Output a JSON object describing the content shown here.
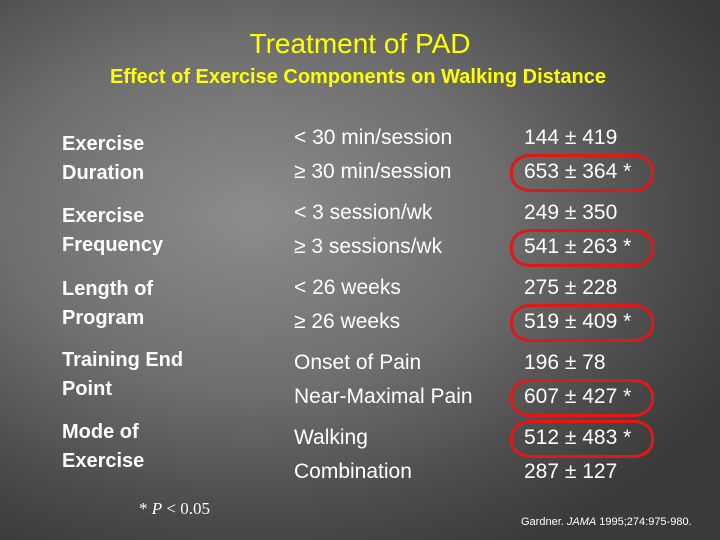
{
  "slide": {
    "title": "Treatment of PAD",
    "subtitle": "Effect of Exercise Components on Walking Distance"
  },
  "rows": [
    {
      "label_line1": "Exercise",
      "label_line2": "Duration",
      "cond1": "< 30 min/session",
      "cond2": "≥ 30 min/session",
      "val1": "144 ± 419",
      "val2": "653 ± 364  *",
      "highlighted_line": 2
    },
    {
      "label_line1": "Exercise",
      "label_line2": "Frequency",
      "cond1": "< 3 session/wk",
      "cond2": "≥ 3 sessions/wk",
      "val1": "249 ± 350",
      "val2": "541 ± 263  *",
      "highlighted_line": 2
    },
    {
      "label_line1": "Length of",
      "label_line2": "Program",
      "cond1": "< 26 weeks",
      "cond2": "≥ 26 weeks",
      "val1": "275 ± 228",
      "val2": "519 ± 409  *",
      "highlighted_line": 2
    },
    {
      "label_line1": "Training End",
      "label_line2": "Point",
      "cond1": "Onset of Pain",
      "cond2": "Near-Maximal Pain",
      "val1": "196 ± 78",
      "val2": "607 ± 427  *",
      "highlighted_line": 2
    },
    {
      "label_line1": "Mode of",
      "label_line2": "Exercise",
      "cond1": "Walking",
      "cond2": "Combination",
      "val1": "512 ± 483  *",
      "val2": "287 ± 127",
      "highlighted_line": 1
    }
  ],
  "footnote": {
    "star": "*",
    "p": "P",
    "rest": "< 0.05"
  },
  "citation": {
    "prefix": "Gardner. ",
    "journal": "JAMA",
    "suffix": " 1995;274:975-980."
  },
  "colors": {
    "title": "#ffff00",
    "text": "#ffffff",
    "highlight": "#e01818"
  }
}
